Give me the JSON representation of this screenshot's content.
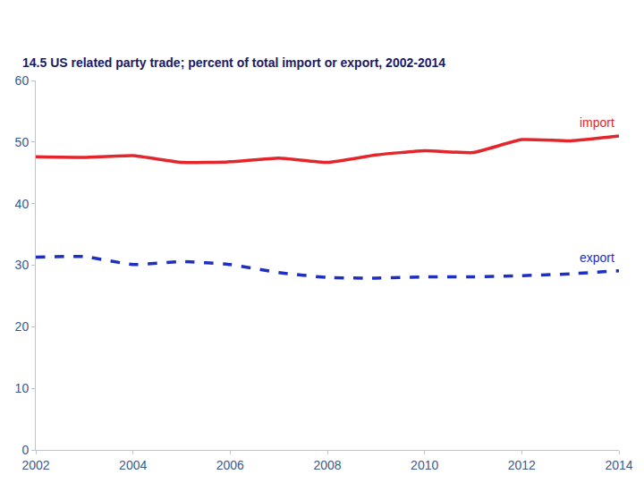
{
  "chart_data": {
    "type": "line",
    "title": "14.5 US related party trade; percent of total import or export, 2002-2014",
    "x": [
      2002,
      2003,
      2004,
      2005,
      2006,
      2007,
      2008,
      2009,
      2010,
      2011,
      2012,
      2013,
      2014
    ],
    "series": [
      {
        "name": "import",
        "color": "#e3262b",
        "line_style": "solid",
        "values": [
          47.6,
          47.5,
          47.8,
          46.7,
          46.8,
          47.4,
          46.7,
          47.9,
          48.6,
          48.3,
          50.4,
          50.2,
          51.0
        ]
      },
      {
        "name": "export",
        "color": "#1f2fbf",
        "line_style": "dash",
        "values": [
          31.3,
          31.4,
          30.1,
          30.6,
          30.1,
          28.8,
          28.0,
          27.9,
          28.1,
          28.1,
          28.3,
          28.6,
          29.1
        ]
      }
    ],
    "xlim": [
      2002,
      2014
    ],
    "xticks": [
      2002,
      2004,
      2006,
      2008,
      2010,
      2012,
      2014
    ],
    "ylim": [
      0,
      60
    ],
    "yticks": [
      0,
      10,
      20,
      30,
      40,
      50,
      60
    ],
    "grid": false,
    "legend": "none"
  }
}
